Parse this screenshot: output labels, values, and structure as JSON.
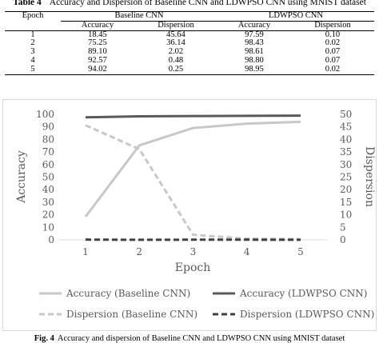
{
  "table": {
    "label": "Table 4",
    "title": "Accuracy and Dispersion of Baseline CNN and LDWPSO CNN using MNIST dataset",
    "col_epoch": "Epoch",
    "group1": "Baseline CNN",
    "group2": "LDWPSO CNN",
    "sub_acc": "Accuracy",
    "sub_disp": "Dispersion",
    "rows": [
      [
        "1",
        "18.45",
        "45.64",
        "97.59",
        "0.10"
      ],
      [
        "2",
        "75.25",
        "36.14",
        "98.43",
        "0.02"
      ],
      [
        "3",
        "89.10",
        "2.02",
        "98.61",
        "0.07"
      ],
      [
        "4",
        "92.57",
        "0.48",
        "98.80",
        "0.07"
      ],
      [
        "5",
        "94.02",
        "0.25",
        "98.95",
        "0.02"
      ]
    ]
  },
  "figure": {
    "label": "Fig. 4",
    "caption": "Accuracy and dispersion of Baseline CNN and LDWPSO CNN using MNIST dataset"
  },
  "chart_data": {
    "type": "line",
    "x": [
      1,
      2,
      3,
      4,
      5
    ],
    "xlabel": "Epoch",
    "ylabel_left": "Accuracy",
    "ylabel_right": "Dispersion",
    "ylim_left": [
      0,
      100
    ],
    "ylim_right": [
      0,
      50
    ],
    "yticks_left": [
      0,
      10,
      20,
      30,
      40,
      50,
      60,
      70,
      80,
      90,
      100
    ],
    "yticks_right": [
      0,
      5,
      10,
      15,
      20,
      25,
      30,
      35,
      40,
      45,
      50
    ],
    "grid": false,
    "legend_position": "bottom",
    "series": [
      {
        "name": "Accuracy (Baseline CNN)",
        "axis": "left",
        "values": [
          18.45,
          75.25,
          89.1,
          92.57,
          94.02
        ],
        "color": "#c8c8c8",
        "dash": "solid"
      },
      {
        "name": "Accuracy (LDWPSO CNN)",
        "axis": "left",
        "values": [
          97.59,
          98.43,
          98.61,
          98.8,
          98.95
        ],
        "color": "#595959",
        "dash": "solid"
      },
      {
        "name": "Dispersion (Baseline CNN)",
        "axis": "right",
        "values": [
          45.64,
          36.14,
          2.02,
          0.48,
          0.25
        ],
        "color": "#c8c8c8",
        "dash": "dashed"
      },
      {
        "name": "Dispersion (LDWPSO CNN)",
        "axis": "right",
        "values": [
          0.1,
          0.02,
          0.07,
          0.07,
          0.02
        ],
        "color": "#404040",
        "dash": "dashed"
      }
    ]
  }
}
